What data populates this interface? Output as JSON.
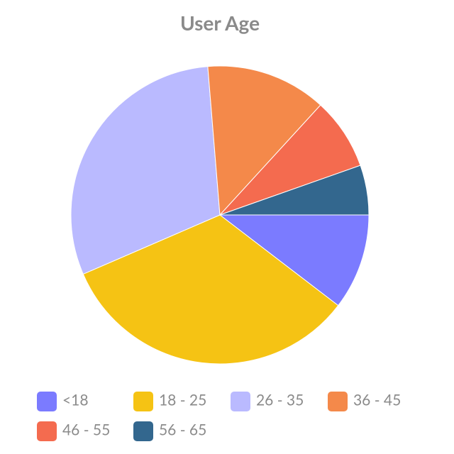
{
  "chart_data": {
    "type": "pie",
    "title": "User Age",
    "categories": [
      "<18",
      "18 - 25",
      "26 - 35",
      "36 - 45",
      "46 - 55",
      "56 - 65"
    ],
    "values": [
      10.4,
      33.1,
      30.2,
      13.1,
      7.8,
      5.4
    ],
    "colors": [
      "#7b7bff",
      "#f5c314",
      "#babaff",
      "#f4894a",
      "#f46b4f",
      "#33678e"
    ]
  }
}
